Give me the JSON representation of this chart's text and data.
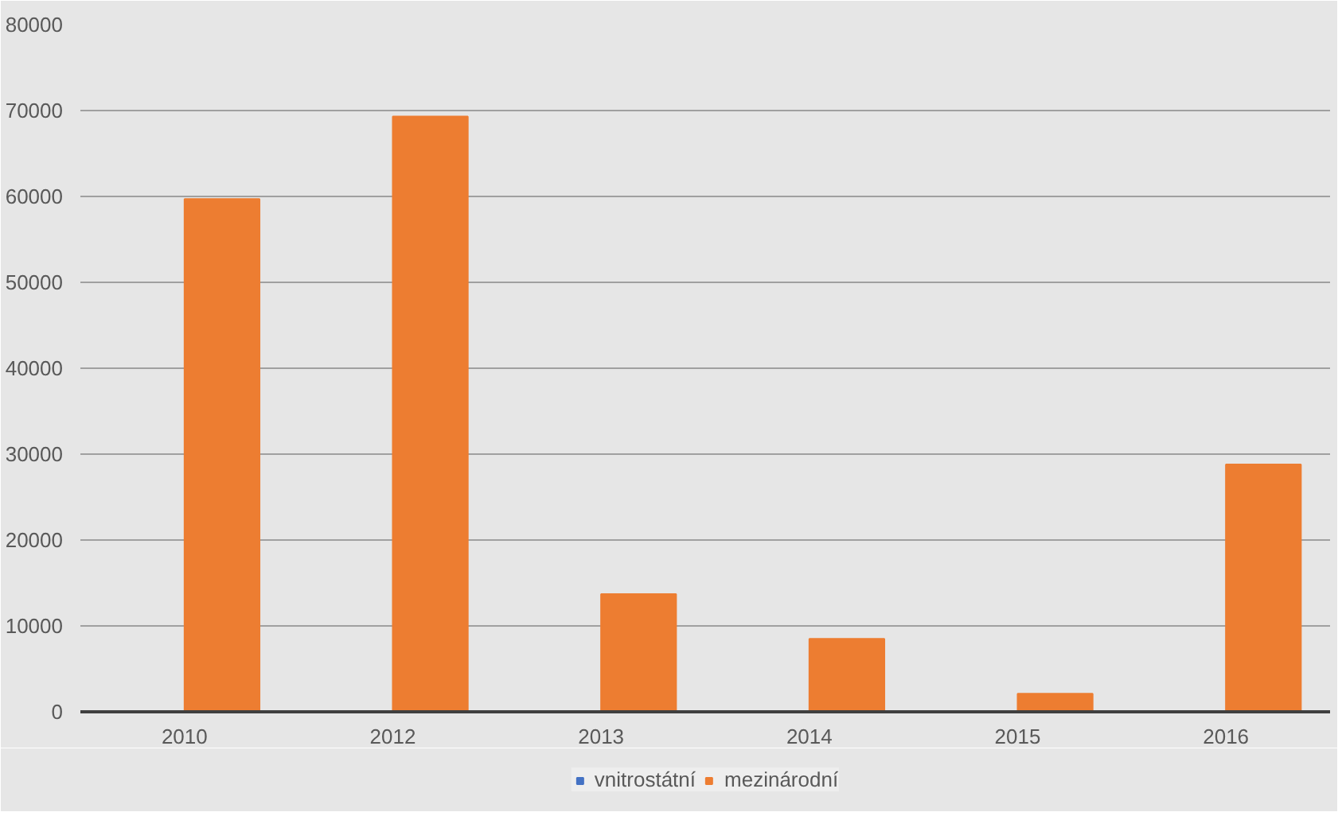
{
  "chart_data": {
    "type": "bar",
    "categories": [
      "2010",
      "2012",
      "2013",
      "2014",
      "2015",
      "2016"
    ],
    "series": [
      {
        "name": "vnitrostátní",
        "color": "#4472c4",
        "values": [
          0,
          0,
          0,
          0,
          0,
          0
        ]
      },
      {
        "name": "mezinárodní",
        "color": "#ed7d31",
        "values": [
          59700,
          69300,
          13700,
          8500,
          2100,
          28800
        ]
      }
    ],
    "ylim": [
      0,
      80000
    ],
    "yticks": [
      0,
      10000,
      20000,
      30000,
      40000,
      50000,
      60000,
      70000,
      80000
    ],
    "grid": "y",
    "legend": "bottom"
  }
}
